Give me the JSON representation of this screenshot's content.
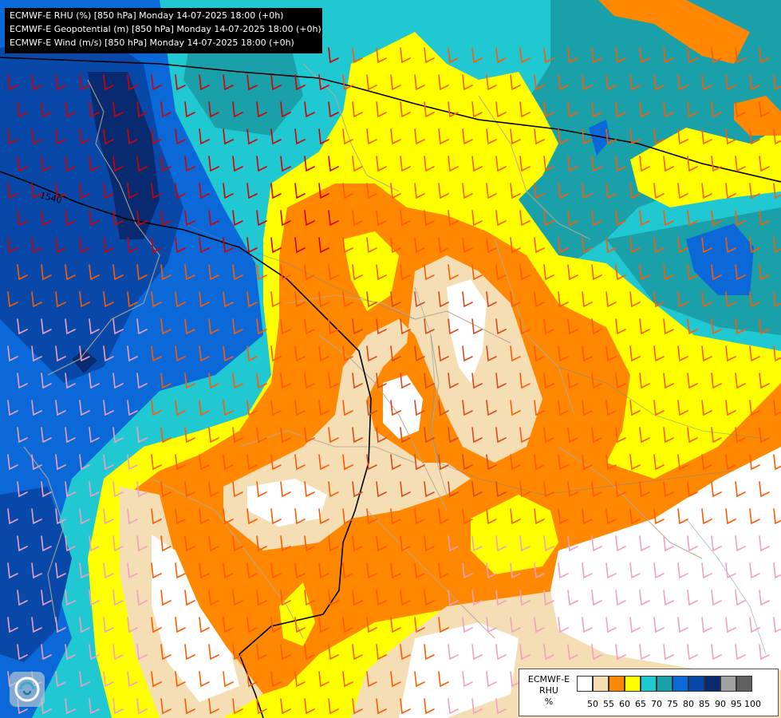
{
  "header": {
    "line1": "ECMWF-E RHU (%) [850 hPa] Monday 14-07-2025 18:00 (+0h)",
    "line2": "ECMWF-E Geopotential (m) [850 hPa] Monday 14-07-2025 18:00 (+0h)",
    "line3": "ECMWF-E Wind (m/s) [850 hPa] Monday 14-07-2025 18:00 (+0h)"
  },
  "contour_label": "1540",
  "legend": {
    "title_line1": "ECMWF-E",
    "title_line2": "RHU",
    "title_line3": "%",
    "swatch_colors": [
      "#ffffff",
      "#f5deb3",
      "#ff8800",
      "#ffff00",
      "#20c8d2",
      "#1aa0a8",
      "#0a68d8",
      "#0848a8",
      "#082a70",
      "#a0a0a0",
      "#606060"
    ],
    "tick_labels": [
      "50",
      "55",
      "60",
      "65",
      "70",
      "75",
      "80",
      "85",
      "90",
      "95",
      "100"
    ]
  },
  "colors": {
    "rhu_50": "#ffffff",
    "rhu_55": "#f5deb3",
    "rhu_60": "#ff8800",
    "rhu_65": "#ffff00",
    "rhu_70": "#20c8d2",
    "rhu_75": "#1aa0a8",
    "rhu_80": "#0a68d8",
    "rhu_85": "#0848a8",
    "rhu_90": "#082a70"
  },
  "icons": {
    "logo": "ecmwf-swirl-icon"
  }
}
